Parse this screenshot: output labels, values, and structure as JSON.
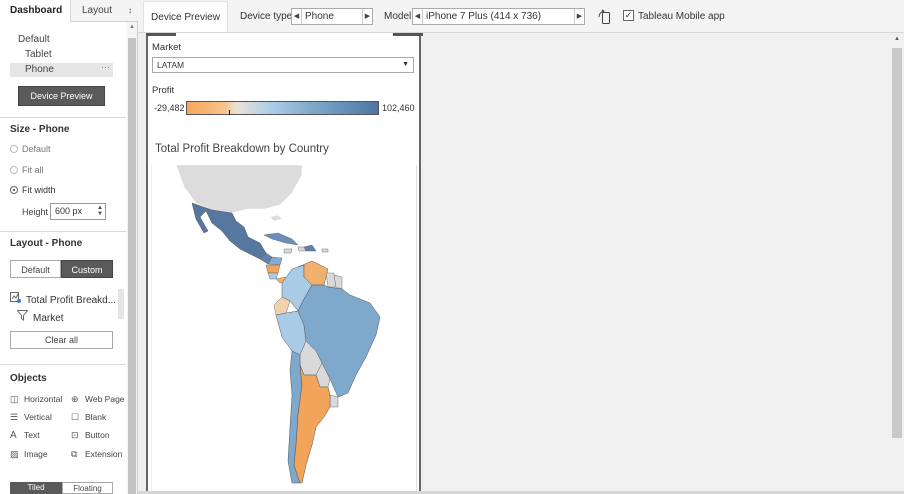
{
  "left_pane": {
    "tabs": {
      "dashboard": "Dashboard",
      "layout": "Layout",
      "layout_dropdown_icon": "↕"
    },
    "devices": {
      "default": "Default",
      "tablet": "Tablet",
      "phone": "Phone",
      "phone_more": "···"
    },
    "device_preview_button": "Device Preview",
    "size": {
      "title": "Size - Phone",
      "options": [
        "Default",
        "Fit all",
        "Fit width"
      ],
      "selected_option": "Fit width",
      "height_label": "Height",
      "height_value": "600 px"
    },
    "layout": {
      "title": "Layout - Phone",
      "segments": [
        "Default",
        "Custom"
      ],
      "selected_segment": "Custom",
      "items": [
        {
          "label": "Total Profit Breakd...",
          "icon": "worksheet-icon"
        },
        {
          "label": "Market",
          "icon": "filter-icon"
        }
      ],
      "clear_all": "Clear all"
    },
    "objects": {
      "title": "Objects",
      "items": [
        {
          "label": "Horizontal",
          "icon": "horizontal-container-icon"
        },
        {
          "label": "Web Page",
          "icon": "globe-icon"
        },
        {
          "label": "Vertical",
          "icon": "vertical-container-icon"
        },
        {
          "label": "Blank",
          "icon": "blank-icon"
        },
        {
          "label": "Text",
          "icon": "text-icon"
        },
        {
          "label": "Button",
          "icon": "button-icon"
        },
        {
          "label": "Image",
          "icon": "image-icon"
        },
        {
          "label": "Extension",
          "icon": "extension-icon"
        }
      ]
    },
    "bottom_tabs": [
      "Tiled",
      "Floating"
    ]
  },
  "toolbar": {
    "tab": "Device Preview",
    "device_type_label": "Device type",
    "device_type_value": "Phone",
    "model_label": "Model",
    "model_value": "iPhone 7 Plus (414 x 736)",
    "mobile_app_checked": true,
    "mobile_app_label": "Tableau Mobile app"
  },
  "dashboard": {
    "market_label": "Market",
    "market_value": "LATAM",
    "profit_label": "Profit",
    "profit_min": "-29,482",
    "profit_max": "102,460",
    "map_title": "Total Profit Breakdown by Country"
  },
  "colors": {
    "accent_dark": "#5a5a5a",
    "negative": "#f6a75a",
    "positive": "#4e76a4",
    "no_data": "#d9d9d9"
  }
}
